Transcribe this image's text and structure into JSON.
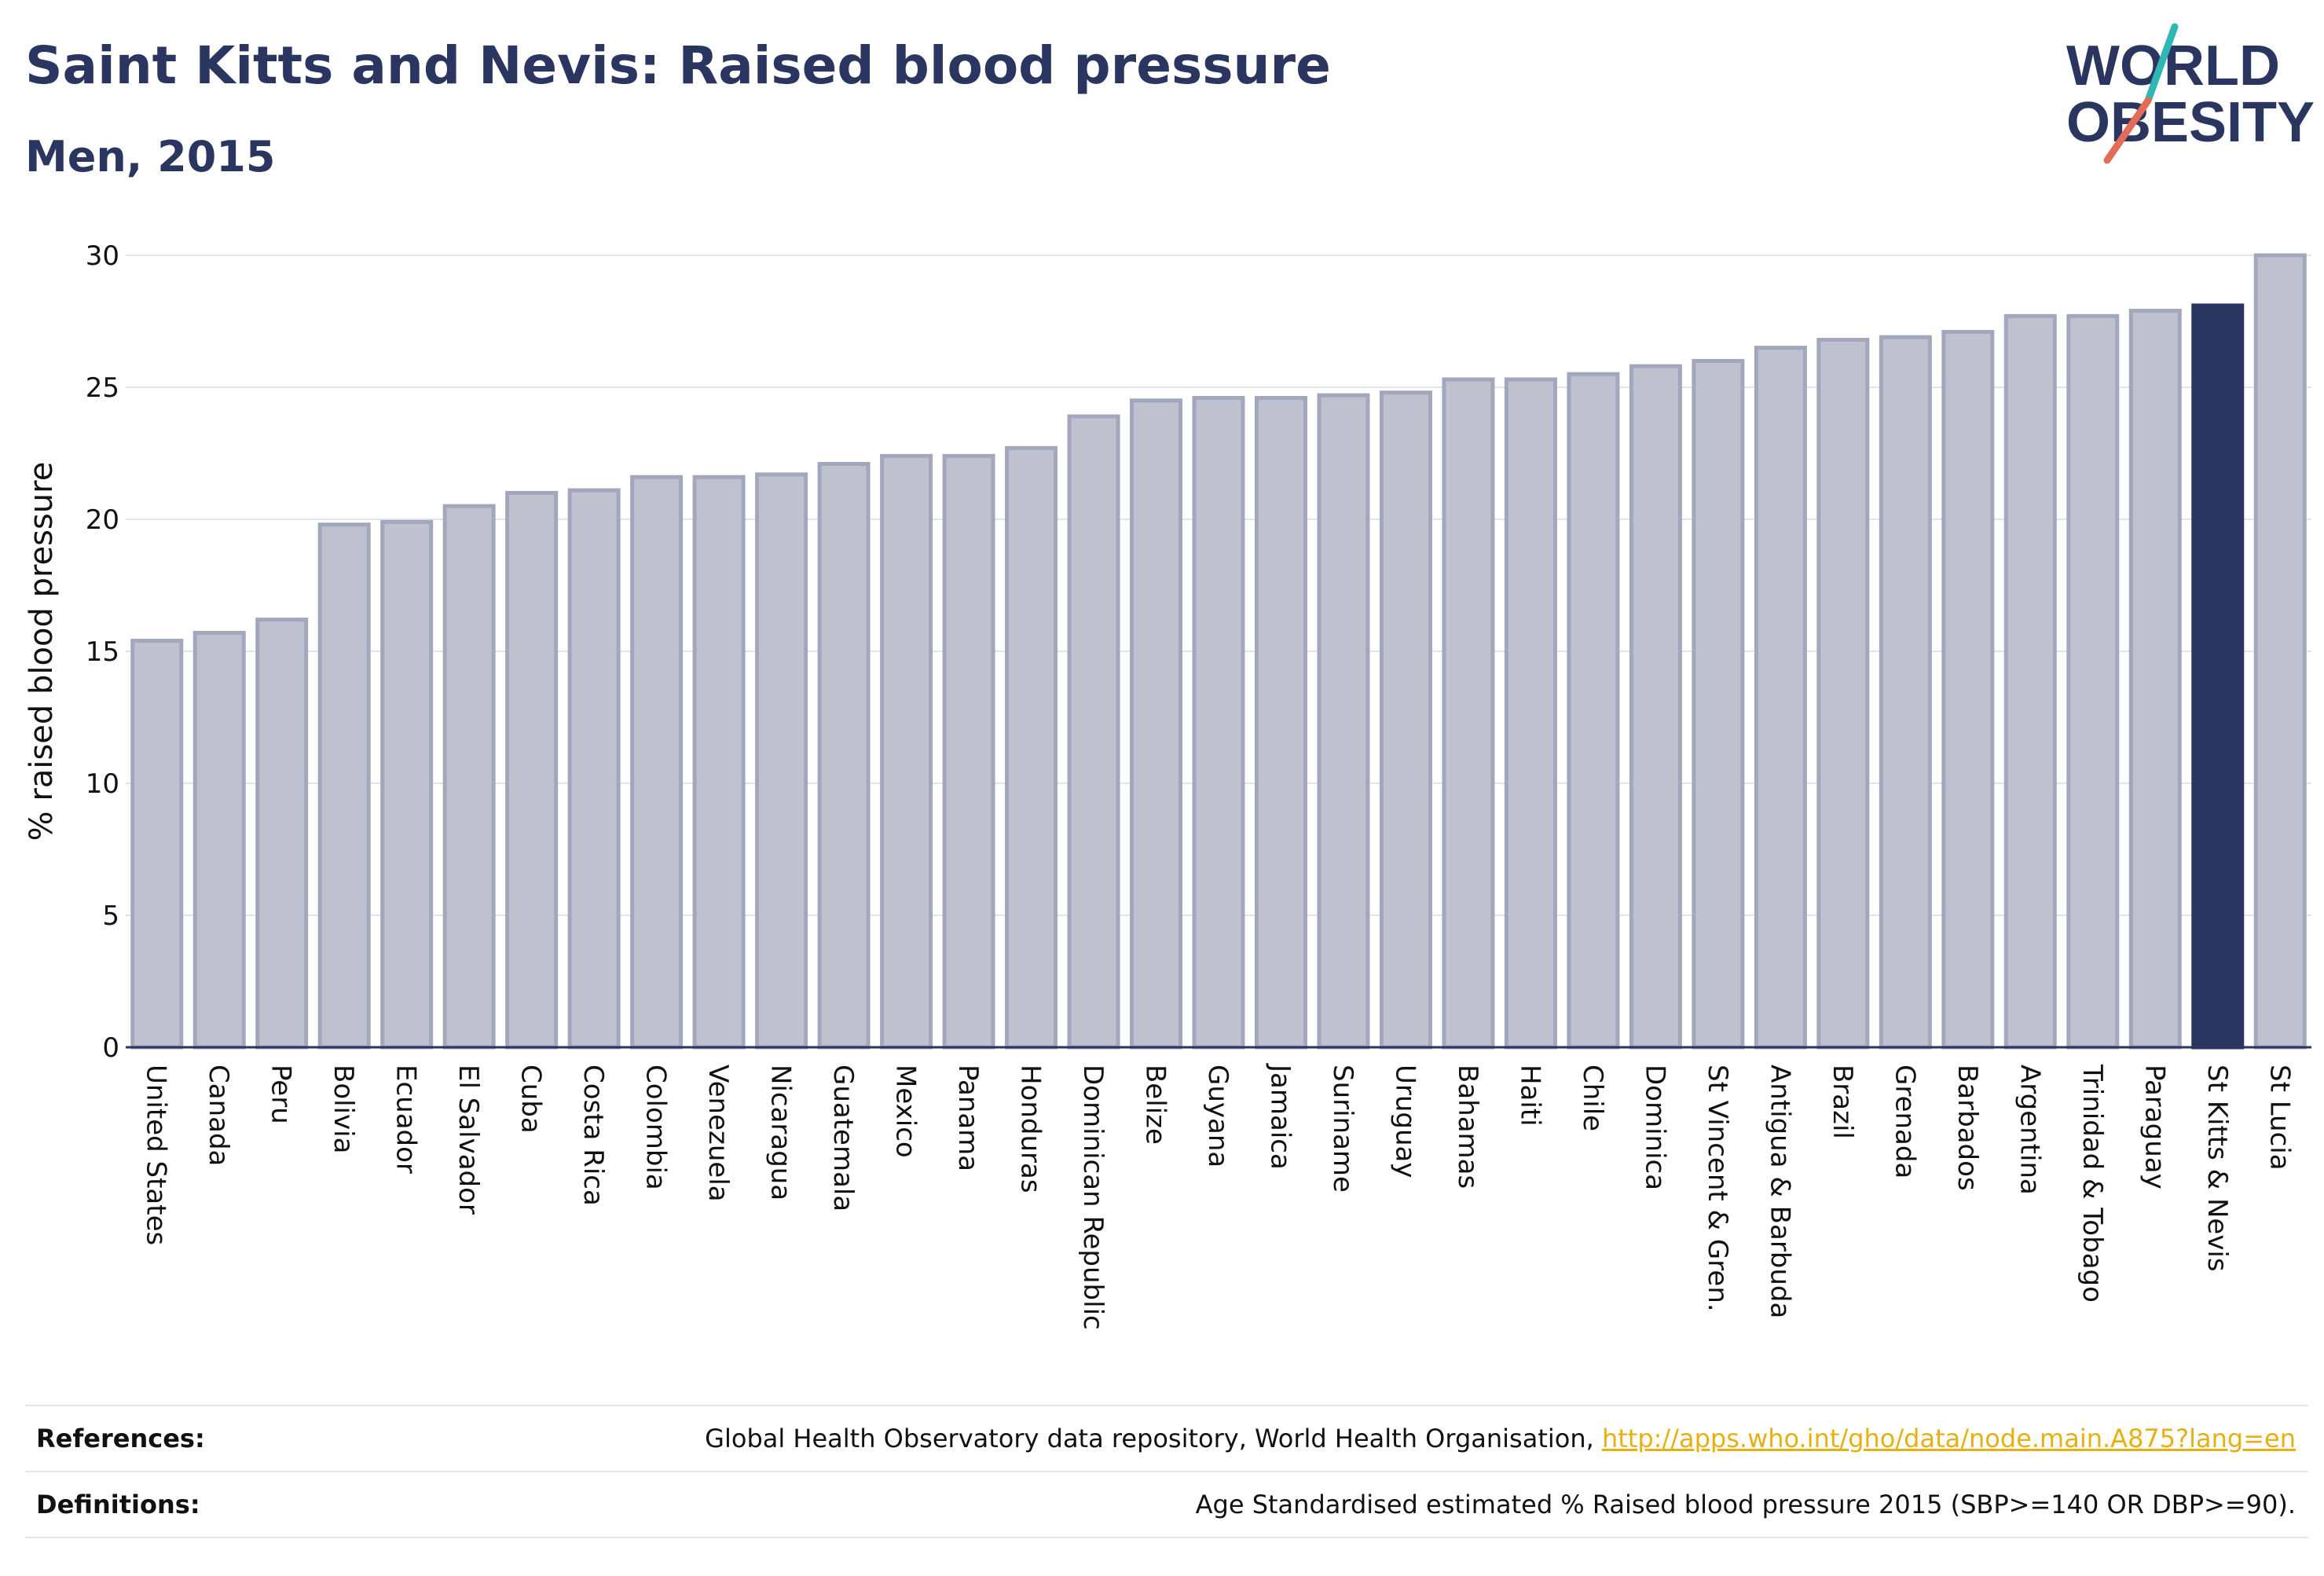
{
  "header": {
    "title": "Saint Kitts and Nevis: Raised blood pressure",
    "subtitle": "Men, 2015"
  },
  "logo": {
    "line1": "WORLD",
    "line2": "OBESITY"
  },
  "colors": {
    "highlight_bar": "#2b3660",
    "default_bar": "#bfc2ce",
    "bar_border": "#a3a7bd",
    "text": "#2b3660",
    "link": "#e6b012",
    "logo_teal": "#2fb7b4",
    "logo_coral": "#e36b5a"
  },
  "chart_data": {
    "type": "bar",
    "title": "",
    "xlabel": "",
    "ylabel": "% raised blood pressure",
    "ylim": [
      0,
      30
    ],
    "yticks": [
      0,
      5,
      10,
      15,
      20,
      25,
      30
    ],
    "grid": true,
    "highlight": "St Kitts & Nevis",
    "categories": [
      "United States",
      "Canada",
      "Peru",
      "Bolivia",
      "Ecuador",
      "El Salvador",
      "Cuba",
      "Costa Rica",
      "Colombia",
      "Venezuela",
      "Nicaragua",
      "Guatemala",
      "Mexico",
      "Panama",
      "Honduras",
      "Dominican Republic",
      "Belize",
      "Guyana",
      "Jamaica",
      "Suriname",
      "Uruguay",
      "Bahamas",
      "Haiti",
      "Chile",
      "Dominica",
      "St Vincent & Gren.",
      "Antigua & Barbuda",
      "Brazil",
      "Grenada",
      "Barbados",
      "Argentina",
      "Trinidad & Tobago",
      "Paraguay",
      "St Kitts & Nevis",
      "St Lucia"
    ],
    "values": [
      15.4,
      15.7,
      16.2,
      19.8,
      19.9,
      20.5,
      21.0,
      21.1,
      21.6,
      21.6,
      21.7,
      22.1,
      22.4,
      22.4,
      22.7,
      23.9,
      24.5,
      24.6,
      24.6,
      24.7,
      24.8,
      25.3,
      25.3,
      25.5,
      25.8,
      26.0,
      26.5,
      26.8,
      26.9,
      27.1,
      27.7,
      27.7,
      27.9,
      28.1,
      30.0
    ]
  },
  "footer": {
    "references_label": "References:",
    "references_text": "Global Health Observatory data repository, World Health Organisation,",
    "references_link": "http://apps.who.int/gho/data/node.main.A875?lang=en",
    "definitions_label": "Definitions:",
    "definitions_text": "Age Standardised estimated % Raised blood pressure 2015 (SBP>=140 OR DBP>=90)."
  }
}
